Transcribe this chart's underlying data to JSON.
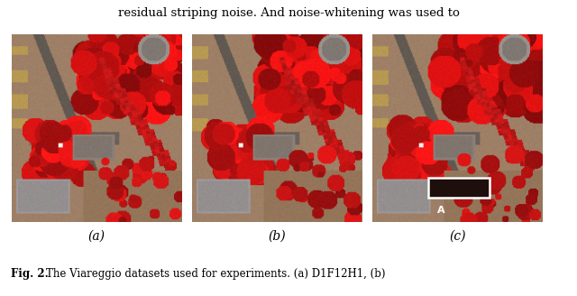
{
  "title_text": "residual striping noise. And noise-whitening was used to",
  "caption_text": "Fig. 2. The Viareggio datasets used for experiments. (a) D1F12H1, (b)",
  "label_a": "(a)",
  "label_b": "(b)",
  "label_c": "(c)",
  "annotation_label": "A",
  "fig_width": 6.4,
  "fig_height": 3.28,
  "background_color": "#ffffff",
  "title_fontsize": 9.5,
  "caption_fontsize": 8.5,
  "sublabel_fontsize": 10
}
